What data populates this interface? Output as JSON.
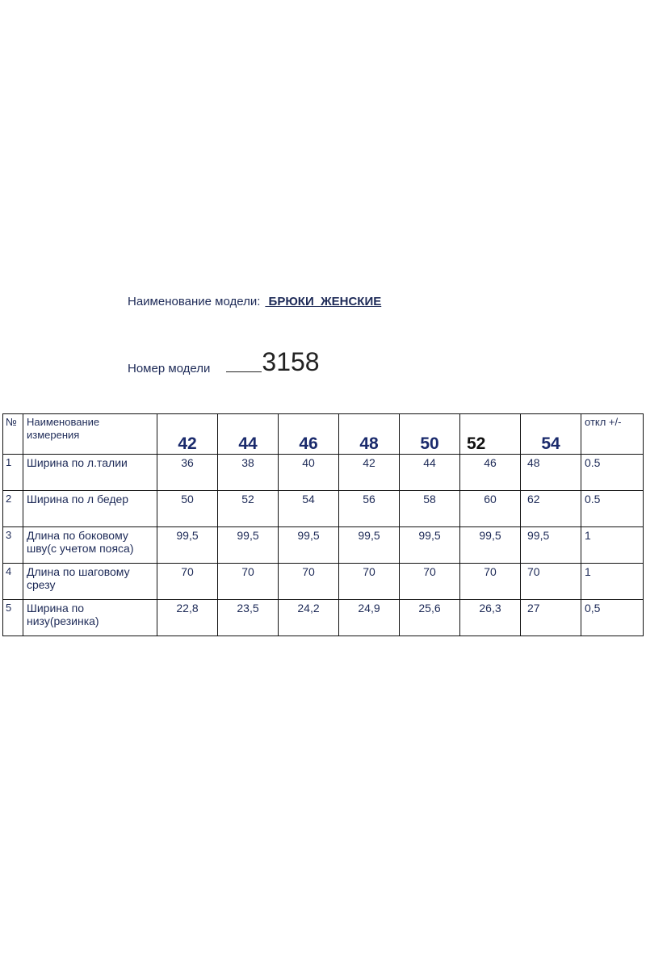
{
  "model_name": {
    "label": "Наименование модели:",
    "value": " БРЮКИ  ЖЕНСКИЕ"
  },
  "model_number": {
    "label": "Номер модели",
    "value": "3158"
  },
  "table": {
    "header": {
      "no": "№",
      "name": "Наименование измерения",
      "sizes": [
        "42",
        "44",
        "46",
        "48",
        "50",
        "52",
        "54"
      ],
      "deviation": "откл +/-"
    },
    "rows": [
      {
        "no": "1",
        "name": "Ширина по л.талии",
        "values": [
          "36",
          "38",
          "40",
          "42",
          "44",
          "46",
          "48"
        ],
        "deviation": "0.5"
      },
      {
        "no": "2",
        "name": "Ширина по л бедер",
        "values": [
          "50",
          "52",
          "54",
          "56",
          "58",
          "60",
          "62"
        ],
        "deviation": "0.5"
      },
      {
        "no": "3",
        "name": "Длина по боковому шву(с учетом пояса)",
        "values": [
          "99,5",
          "99,5",
          "99,5",
          "99,5",
          "99,5",
          "99,5",
          "99,5"
        ],
        "deviation": "1"
      },
      {
        "no": "4",
        "name": "Длина по шаговому срезу",
        "values": [
          "70",
          "70",
          "70",
          "70",
          "70",
          "70",
          "70"
        ],
        "deviation": "1"
      },
      {
        "no": "5",
        "name": "Ширина по низу(резинка)",
        "values": [
          "22,8",
          "23,5",
          "24,2",
          "24,9",
          "25,6",
          "26,3",
          "27"
        ],
        "deviation": "0,5"
      }
    ]
  },
  "colors": {
    "text": "#1d2a57",
    "size_header": "#1a2a6c"
  }
}
